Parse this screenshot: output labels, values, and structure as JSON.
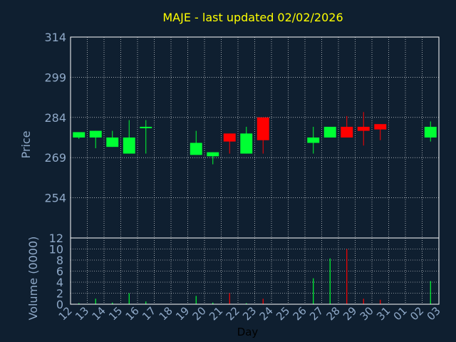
{
  "title": "MAJE - last updated 02/02/2026",
  "colors": {
    "background": "#0f1f30",
    "axis_text": "#8fa9c8",
    "title": "#ffff00",
    "up": "#00ff33",
    "down": "#ff0000",
    "grid": "#ffffff",
    "frame": "#ffffff"
  },
  "chart_data": {
    "type": "candlestick",
    "title": "MAJE - last updated 02/02/2026",
    "xlabel": "Day",
    "price_ylabel": "Price",
    "volume_ylabel": "Volume (0000)",
    "x_ticks": [
      "12",
      "13",
      "14",
      "15",
      "16",
      "17",
      "18",
      "19",
      "20",
      "21",
      "22",
      "23",
      "24",
      "25",
      "26",
      "27",
      "28",
      "29",
      "30",
      "31",
      "01",
      "02",
      "03"
    ],
    "price_ylim": [
      239,
      314
    ],
    "price_ticks": [
      314,
      299,
      284,
      269,
      254
    ],
    "volume_ylim": [
      0,
      12
    ],
    "volume_ticks": [
      12,
      10,
      8,
      6,
      4,
      2,
      0
    ],
    "grid": true,
    "candles": [
      {
        "x": 0.0,
        "open": 276.5,
        "close": 278.5,
        "high": 278.5,
        "low": 276.0,
        "volume": 0.2
      },
      {
        "x": 1.0,
        "open": 276.5,
        "close": 279.0,
        "high": 279.0,
        "low": 272.5,
        "volume": 1.0
      },
      {
        "x": 2.0,
        "open": 273.0,
        "close": 276.5,
        "high": 279.0,
        "low": 273.0,
        "volume": 0.3
      },
      {
        "x": 3.0,
        "open": 270.5,
        "close": 276.5,
        "high": 283.0,
        "low": 270.5,
        "volume": 2.0
      },
      {
        "x": 4.0,
        "open": 280.0,
        "close": 280.5,
        "high": 283.0,
        "low": 270.5,
        "volume": 0.5
      },
      {
        "x": 7.0,
        "open": 270.0,
        "close": 274.5,
        "high": 279.0,
        "low": 270.0,
        "volume": 1.5
      },
      {
        "x": 8.0,
        "open": 269.5,
        "close": 271.0,
        "high": 271.0,
        "low": 266.5,
        "volume": 0.3
      },
      {
        "x": 9.0,
        "open": 278.0,
        "close": 275.0,
        "high": 278.0,
        "low": 270.5,
        "volume": 2.0
      },
      {
        "x": 10.0,
        "open": 270.5,
        "close": 278.0,
        "high": 280.5,
        "low": 270.5,
        "volume": 0.2
      },
      {
        "x": 11.0,
        "open": 284.0,
        "close": 275.5,
        "high": 284.0,
        "low": 270.5,
        "volume": 1.0
      },
      {
        "x": 14.0,
        "open": 274.5,
        "close": 276.5,
        "high": 280.5,
        "low": 270.5,
        "volume": 4.7
      },
      {
        "x": 15.0,
        "open": 276.5,
        "close": 280.5,
        "high": 280.5,
        "low": 276.5,
        "volume": 8.3
      },
      {
        "x": 16.0,
        "open": 280.5,
        "close": 276.5,
        "high": 284.5,
        "low": 276.5,
        "volume": 10.0
      },
      {
        "x": 17.0,
        "open": 280.5,
        "close": 279.0,
        "high": 286.0,
        "low": 273.5,
        "volume": 1.0
      },
      {
        "x": 18.0,
        "open": 281.5,
        "close": 279.5,
        "high": 281.5,
        "low": 275.5,
        "volume": 0.8
      },
      {
        "x": 21.0,
        "open": 276.5,
        "close": 280.5,
        "high": 282.5,
        "low": 275.0,
        "volume": 4.2
      }
    ]
  }
}
